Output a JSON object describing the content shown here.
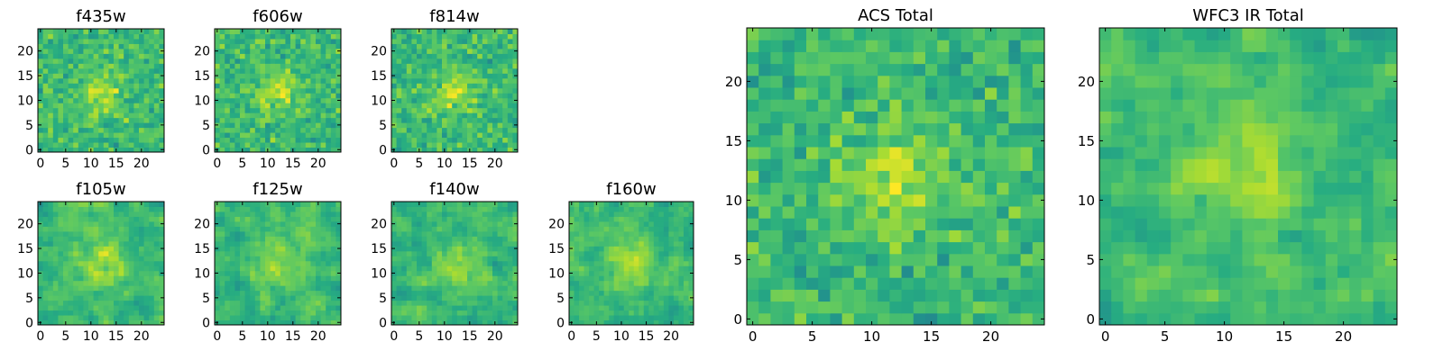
{
  "chart_data": [
    {
      "type": "heatmap",
      "title": "f435w",
      "xlim": [
        0,
        25
      ],
      "ylim": [
        0,
        25
      ],
      "xticks": [
        0,
        5,
        10,
        15,
        20
      ],
      "yticks": [
        0,
        5,
        10,
        15,
        20
      ],
      "xtick_labels": [
        "0",
        "5",
        "10",
        "15",
        "20"
      ],
      "ytick_labels": [
        "0",
        "5",
        "10",
        "15",
        "20"
      ],
      "colormap": "viridis",
      "grid_size": 25,
      "texture": "noise",
      "seed": 11
    },
    {
      "type": "heatmap",
      "title": "f606w",
      "xlim": [
        0,
        25
      ],
      "ylim": [
        0,
        25
      ],
      "xticks": [
        0,
        5,
        10,
        15,
        20
      ],
      "yticks": [
        0,
        5,
        10,
        15,
        20
      ],
      "xtick_labels": [
        "0",
        "5",
        "10",
        "15",
        "20"
      ],
      "ytick_labels": [
        "0",
        "5",
        "10",
        "15",
        "20"
      ],
      "colormap": "viridis",
      "grid_size": 25,
      "texture": "noise",
      "seed": 23
    },
    {
      "type": "heatmap",
      "title": "f814w",
      "xlim": [
        0,
        25
      ],
      "ylim": [
        0,
        25
      ],
      "xticks": [
        0,
        5,
        10,
        15,
        20
      ],
      "yticks": [
        0,
        5,
        10,
        15,
        20
      ],
      "xtick_labels": [
        "0",
        "5",
        "10",
        "15",
        "20"
      ],
      "ytick_labels": [
        "0",
        "5",
        "10",
        "15",
        "20"
      ],
      "colormap": "viridis",
      "grid_size": 25,
      "texture": "noise",
      "seed": 37
    },
    {
      "type": "heatmap",
      "title": "f105w",
      "xlim": [
        0,
        25
      ],
      "ylim": [
        0,
        25
      ],
      "xticks": [
        0,
        5,
        10,
        15,
        20
      ],
      "yticks": [
        0,
        5,
        10,
        15,
        20
      ],
      "xtick_labels": [
        "0",
        "5",
        "10",
        "15",
        "20"
      ],
      "ytick_labels": [
        "0",
        "5",
        "10",
        "15",
        "20"
      ],
      "colormap": "viridis",
      "grid_size": 25,
      "texture": "smooth",
      "seed": 41
    },
    {
      "type": "heatmap",
      "title": "f125w",
      "xlim": [
        0,
        25
      ],
      "ylim": [
        0,
        25
      ],
      "xticks": [
        0,
        5,
        10,
        15,
        20
      ],
      "yticks": [
        0,
        5,
        10,
        15,
        20
      ],
      "xtick_labels": [
        "0",
        "5",
        "10",
        "15",
        "20"
      ],
      "ytick_labels": [
        "0",
        "5",
        "10",
        "15",
        "20"
      ],
      "colormap": "viridis",
      "grid_size": 25,
      "texture": "smooth",
      "seed": 53
    },
    {
      "type": "heatmap",
      "title": "f140w",
      "xlim": [
        0,
        25
      ],
      "ylim": [
        0,
        25
      ],
      "xticks": [
        0,
        5,
        10,
        15,
        20
      ],
      "yticks": [
        0,
        5,
        10,
        15,
        20
      ],
      "xtick_labels": [
        "0",
        "5",
        "10",
        "15",
        "20"
      ],
      "ytick_labels": [
        "0",
        "5",
        "10",
        "15",
        "20"
      ],
      "colormap": "viridis",
      "grid_size": 25,
      "texture": "smooth",
      "seed": 67
    },
    {
      "type": "heatmap",
      "title": "f160w",
      "xlim": [
        0,
        25
      ],
      "ylim": [
        0,
        25
      ],
      "xticks": [
        0,
        5,
        10,
        15,
        20
      ],
      "yticks": [
        0,
        5,
        10,
        15,
        20
      ],
      "xtick_labels": [
        "0",
        "5",
        "10",
        "15",
        "20"
      ],
      "ytick_labels": [
        "0",
        "5",
        "10",
        "15",
        "20"
      ],
      "colormap": "viridis",
      "grid_size": 25,
      "texture": "smooth",
      "seed": 79
    },
    {
      "type": "heatmap",
      "title": "ACS Total",
      "xlim": [
        0,
        25
      ],
      "ylim": [
        0,
        25
      ],
      "xticks": [
        0,
        5,
        10,
        15,
        20
      ],
      "yticks": [
        0,
        5,
        10,
        15,
        20
      ],
      "xtick_labels": [
        "0",
        "5",
        "10",
        "15",
        "20"
      ],
      "ytick_labels": [
        "0",
        "5",
        "10",
        "15",
        "20"
      ],
      "colormap": "viridis",
      "grid_size": 25,
      "texture": "noise",
      "seed": 83
    },
    {
      "type": "heatmap",
      "title": "WFC3 IR Total",
      "xlim": [
        0,
        25
      ],
      "ylim": [
        0,
        25
      ],
      "xticks": [
        0,
        5,
        10,
        15,
        20
      ],
      "yticks": [
        0,
        5,
        10,
        15,
        20
      ],
      "xtick_labels": [
        "0",
        "5",
        "10",
        "15",
        "20"
      ],
      "ytick_labels": [
        "0",
        "5",
        "10",
        "15",
        "20"
      ],
      "colormap": "viridis",
      "grid_size": 25,
      "texture": "smooth",
      "seed": 97
    }
  ]
}
